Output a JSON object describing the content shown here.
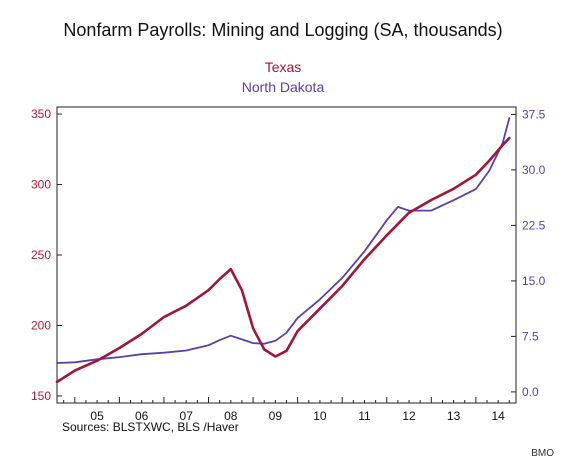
{
  "chart_data": {
    "type": "line",
    "title": "Nonfarm Payrolls: Mining and Logging  (SA, thousands)",
    "x_tick_labels": [
      "05",
      "06",
      "07",
      "08",
      "09",
      "10",
      "11",
      "12",
      "13",
      "14"
    ],
    "x_range": [
      2004.6,
      2014.9
    ],
    "y_left": {
      "range": [
        145,
        355
      ],
      "ticks": [
        "150",
        "200",
        "250",
        "300",
        "350"
      ],
      "tick_values": [
        150,
        200,
        250,
        300,
        350
      ]
    },
    "y_right": {
      "range": [
        -1.5,
        38.5
      ],
      "ticks": [
        "0.0",
        "7.5",
        "15.0",
        "22.5",
        "30.0",
        "37.5"
      ],
      "tick_values": [
        0,
        7.5,
        15,
        22.5,
        30,
        37.5
      ]
    },
    "series": [
      {
        "name": "Texas",
        "axis": "left",
        "color": "#a3143a",
        "x": [
          2004.6,
          2005.0,
          2005.5,
          2006.0,
          2006.5,
          2007.0,
          2007.5,
          2008.0,
          2008.25,
          2008.5,
          2008.75,
          2009.0,
          2009.25,
          2009.5,
          2009.75,
          2010.0,
          2010.5,
          2011.0,
          2011.5,
          2012.0,
          2012.5,
          2013.0,
          2013.5,
          2014.0,
          2014.3,
          2014.6,
          2014.75
        ],
        "y": [
          160,
          168,
          175,
          184,
          194,
          206,
          214,
          225,
          233,
          240,
          225,
          198,
          183,
          178,
          182,
          196,
          212,
          228,
          247,
          264,
          280,
          289,
          297,
          307,
          317,
          328,
          333
        ]
      },
      {
        "name": "North Dakota",
        "axis": "right",
        "color": "#5b3fa6",
        "x": [
          2004.6,
          2005.0,
          2005.5,
          2006.0,
          2006.5,
          2007.0,
          2007.5,
          2008.0,
          2008.25,
          2008.5,
          2008.75,
          2009.0,
          2009.25,
          2009.5,
          2009.75,
          2010.0,
          2010.5,
          2011.0,
          2011.5,
          2012.0,
          2012.25,
          2012.5,
          2013.0,
          2013.5,
          2014.0,
          2014.3,
          2014.6,
          2014.75
        ],
        "y": [
          3.9,
          4.0,
          4.4,
          4.7,
          5.1,
          5.3,
          5.6,
          6.3,
          7.0,
          7.6,
          7.1,
          6.6,
          6.5,
          6.9,
          8.0,
          10.0,
          12.5,
          15.4,
          19.0,
          23.2,
          25.0,
          24.5,
          24.5,
          25.9,
          27.4,
          29.9,
          33.6,
          37.0
        ]
      }
    ],
    "source": "Sources:  BLSTXWC, BLS /Haver"
  },
  "credit": "BMO"
}
